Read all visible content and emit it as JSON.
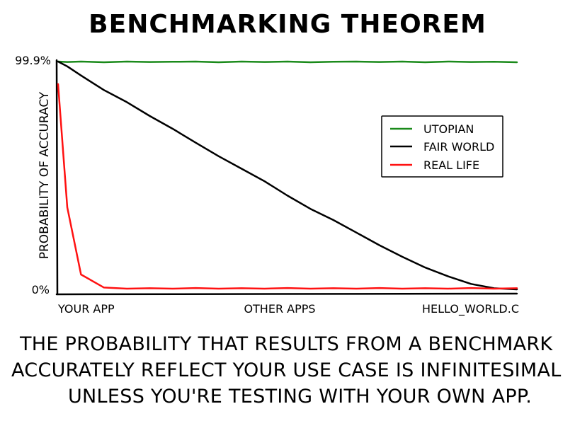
{
  "title": "BENCHMARKING THEOREM",
  "caption": [
    "THE PROBABILITY THAT RESULTS FROM A BENCHMARK",
    "ACCURATELY REFLECT YOUR USE CASE IS INFINITESIMAL",
    "UNLESS YOU'RE TESTING WITH YOUR OWN APP."
  ],
  "chart_data": {
    "type": "line",
    "title": "",
    "xlabel": "",
    "ylabel": "PROBABILITY OF ACCURACY",
    "categories": [
      "YOUR APP",
      "OTHER APPS",
      "HELLO_WORLD.C"
    ],
    "ytick_labels": [
      "0%",
      "99.9%"
    ],
    "ylim": [
      0,
      99.9
    ],
    "grid": false,
    "legend_position": "center-right",
    "x": [
      0,
      0.02,
      0.05,
      0.1,
      0.15,
      0.2,
      0.25,
      0.3,
      0.35,
      0.4,
      0.45,
      0.5,
      0.55,
      0.6,
      0.65,
      0.7,
      0.75,
      0.8,
      0.85,
      0.9,
      0.95,
      1.0
    ],
    "series": [
      {
        "name": "UTOPIAN",
        "color": "#1a8a1a",
        "values": [
          99.9,
          99.7,
          99.9,
          99.6,
          99.9,
          99.7,
          99.8,
          99.9,
          99.6,
          99.9,
          99.7,
          99.9,
          99.6,
          99.8,
          99.9,
          99.7,
          99.9,
          99.6,
          99.9,
          99.7,
          99.8,
          99.6
        ]
      },
      {
        "name": "FAIR WORLD",
        "color": "#000000",
        "values": [
          99.9,
          97.8,
          93.8,
          87.4,
          82.1,
          76.0,
          70.4,
          64.3,
          58.4,
          52.9,
          47.4,
          41.1,
          35.3,
          30.4,
          24.9,
          19.4,
          14.3,
          9.6,
          5.7,
          2.4,
          0.5,
          0.0
        ]
      },
      {
        "name": "REAL LIFE",
        "color": "#ff1111",
        "values": [
          90.0,
          36.0,
          6.5,
          0.8,
          0.3,
          0.5,
          0.3,
          0.6,
          0.3,
          0.5,
          0.3,
          0.6,
          0.3,
          0.5,
          0.3,
          0.6,
          0.3,
          0.5,
          0.3,
          0.6,
          0.3,
          0.5
        ]
      }
    ]
  }
}
